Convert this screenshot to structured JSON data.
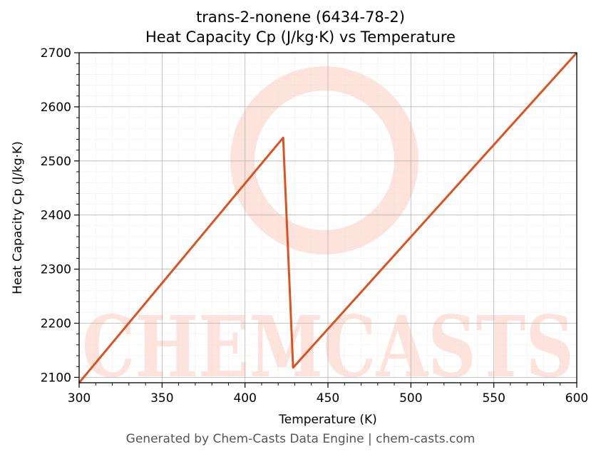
{
  "chart_data": {
    "type": "line",
    "title_line1": "trans-2-nonene (6434-78-2)",
    "title_line2": "Heat Capacity Cp (J/kg·K) vs Temperature",
    "xlabel": "Temperature (K)",
    "ylabel": "Heat Capacity Cp (J/kg·K)",
    "xlim": [
      300,
      600
    ],
    "ylim": [
      2090,
      2700
    ],
    "xticks": [
      300,
      350,
      400,
      450,
      500,
      550,
      600
    ],
    "yticks": [
      2100,
      2200,
      2300,
      2400,
      2500,
      2600,
      2700
    ],
    "grid": true,
    "series": [
      {
        "color": "#d95323",
        "x": [
          300,
          423,
          429,
          600
        ],
        "y": [
          2090,
          2543,
          2118,
          2700
        ]
      }
    ]
  },
  "watermark": "CHEMCASTS",
  "footer": "Generated by Chem-Casts Data Engine | chem-casts.com"
}
